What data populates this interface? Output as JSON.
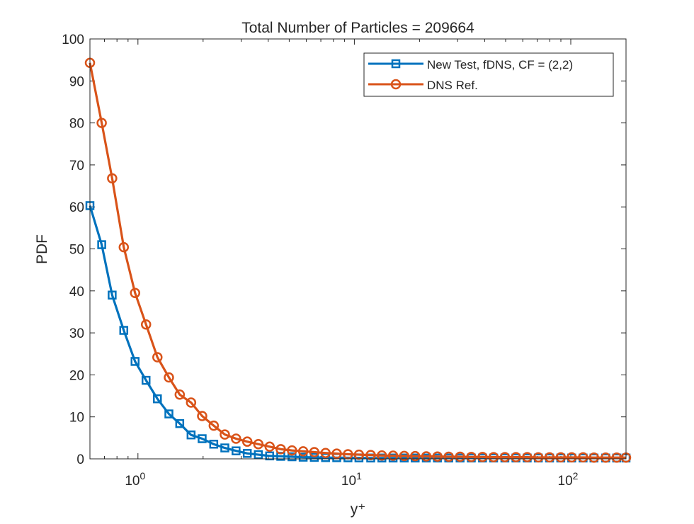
{
  "chart_data": {
    "type": "line",
    "title": "Total Number of Particles = 209664",
    "xlabel": "y⁺",
    "ylabel": "PDF",
    "xscale": "log",
    "xlim": [
      0.6,
      180
    ],
    "ylim": [
      0,
      100
    ],
    "yticks": [
      0,
      10,
      20,
      30,
      40,
      50,
      60,
      70,
      80,
      90,
      100
    ],
    "xticks": [
      {
        "value": 1,
        "base": "10",
        "exp": "0"
      },
      {
        "value": 10,
        "base": "10",
        "exp": "1"
      },
      {
        "value": 100,
        "base": "10",
        "exp": "2"
      }
    ],
    "grid": false,
    "legend_position": "top-right",
    "series": [
      {
        "name": "New Test, fDNS, CF = (2,2)",
        "color": "#0072BD",
        "marker": "square",
        "x": [
          0.6,
          0.68,
          0.76,
          0.86,
          0.97,
          1.09,
          1.23,
          1.39,
          1.56,
          1.76,
          1.98,
          2.24,
          2.52,
          2.84,
          3.2,
          3.6,
          4.06,
          4.57,
          5.15,
          5.8,
          6.53,
          7.36,
          8.29,
          9.34,
          10.5,
          11.9,
          13.4,
          15.1,
          17.0,
          19.1,
          21.5,
          24.2,
          27.3,
          30.8,
          34.7,
          39.1,
          44.0,
          49.6,
          55.8,
          62.9,
          70.8,
          79.8,
          89.9,
          101,
          114,
          128,
          145,
          163,
          180
        ],
        "y": [
          60.3,
          51.0,
          39.0,
          30.6,
          23.2,
          18.7,
          14.3,
          10.7,
          8.4,
          5.7,
          4.8,
          3.5,
          2.6,
          1.9,
          1.3,
          1.0,
          0.7,
          0.6,
          0.5,
          0.4,
          0.35,
          0.3,
          0.28,
          0.25,
          0.23,
          0.2,
          0.2,
          0.2,
          0.2,
          0.2,
          0.2,
          0.2,
          0.2,
          0.2,
          0.2,
          0.2,
          0.2,
          0.2,
          0.2,
          0.2,
          0.2,
          0.2,
          0.2,
          0.2,
          0.2,
          0.2,
          0.2,
          0.2,
          0.2
        ]
      },
      {
        "name": "DNS Ref.",
        "color": "#D95319",
        "marker": "circle",
        "x": [
          0.6,
          0.68,
          0.76,
          0.86,
          0.97,
          1.09,
          1.23,
          1.39,
          1.56,
          1.76,
          1.98,
          2.24,
          2.52,
          2.84,
          3.2,
          3.6,
          4.06,
          4.57,
          5.15,
          5.8,
          6.53,
          7.36,
          8.29,
          9.34,
          10.5,
          11.9,
          13.4,
          15.1,
          17.0,
          19.1,
          21.5,
          24.2,
          27.3,
          30.8,
          34.7,
          39.1,
          44.0,
          49.6,
          55.8,
          62.9,
          70.8,
          79.8,
          89.9,
          101,
          114,
          128,
          145,
          163,
          180
        ],
        "y": [
          94.3,
          80.0,
          66.8,
          50.4,
          39.5,
          32.0,
          24.2,
          19.4,
          15.3,
          13.4,
          10.2,
          7.9,
          5.8,
          4.8,
          4.1,
          3.5,
          2.9,
          2.3,
          2.0,
          1.8,
          1.6,
          1.4,
          1.25,
          1.1,
          1.0,
          0.9,
          0.8,
          0.75,
          0.7,
          0.65,
          0.6,
          0.55,
          0.5,
          0.5,
          0.45,
          0.45,
          0.4,
          0.4,
          0.4,
          0.4,
          0.35,
          0.35,
          0.35,
          0.35,
          0.35,
          0.3,
          0.3,
          0.3,
          0.3
        ]
      }
    ]
  }
}
